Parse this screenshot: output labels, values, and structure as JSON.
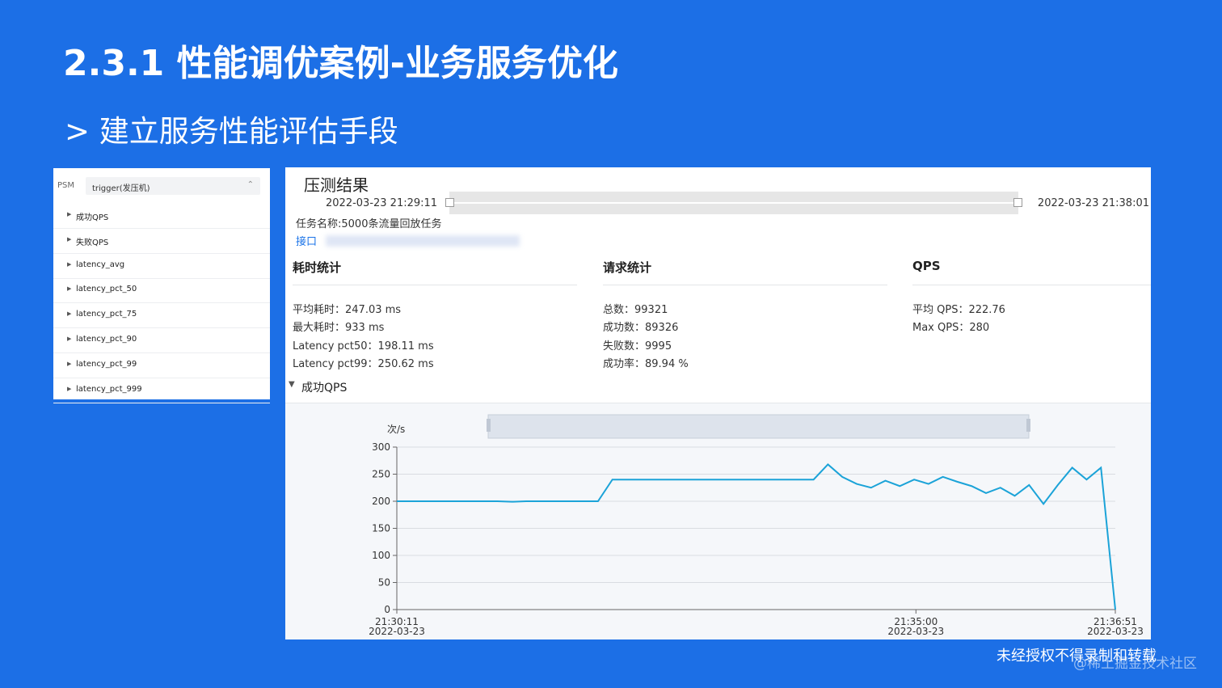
{
  "slide": {
    "title": "2.3.1 性能调优案例-业务服务优化",
    "subtitle": "> 建立服务性能评估手段",
    "footer": "未经授权不得录制和转载",
    "watermark": "@稀土掘金技术社区"
  },
  "sidebar": {
    "psm_label": "PSM",
    "psm_value": "trigger(发压机)",
    "items": [
      "成功QPS",
      "失败QPS",
      "latency_avg",
      "latency_pct_50",
      "latency_pct_75",
      "latency_pct_90",
      "latency_pct_99",
      "latency_pct_999"
    ]
  },
  "report": {
    "title": "压测结果",
    "start_time": "2022-03-23 21:29:11",
    "end_time": "2022-03-23 21:38:01",
    "task": "任务名称:5000条流量回放任务",
    "link": "接口",
    "sections": [
      {
        "title": "耗时统计",
        "lines": [
          "平均耗时：247.03 ms",
          "最大耗时：933 ms",
          "Latency pct50：198.11 ms",
          "Latency pct99：250.62 ms"
        ]
      },
      {
        "title": "请求统计",
        "lines": [
          "总数：99321",
          "成功数：89326",
          "失败数：9995",
          "成功率：89.94 %"
        ]
      },
      {
        "title": "QPS",
        "lines": [
          "平均 QPS：222.76",
          "Max QPS：280"
        ]
      }
    ],
    "chart_toggle": "成功QPS"
  },
  "chart_data": {
    "type": "line",
    "y_label": "次/s",
    "color": "#1ba3d8",
    "x": [
      "21:30:11",
      "21:30:19",
      "21:30:27",
      "21:30:35",
      "21:30:43",
      "21:30:51",
      "21:30:59",
      "21:31:07",
      "21:31:15",
      "21:31:23",
      "21:31:31",
      "21:31:39",
      "21:31:47",
      "21:31:55",
      "21:32:03",
      "21:32:11",
      "21:32:19",
      "21:32:27",
      "21:32:35",
      "21:32:43",
      "21:32:51",
      "21:32:59",
      "21:33:07",
      "21:33:15",
      "21:33:23",
      "21:33:31",
      "21:33:39",
      "21:33:47",
      "21:33:55",
      "21:34:03",
      "21:34:11",
      "21:34:19",
      "21:34:27",
      "21:34:35",
      "21:34:43",
      "21:34:51",
      "21:34:59",
      "21:35:07",
      "21:35:15",
      "21:35:23",
      "21:35:31",
      "21:35:39",
      "21:35:47",
      "21:35:55",
      "21:36:03",
      "21:36:11",
      "21:36:19",
      "21:36:27",
      "21:36:35",
      "21:36:43",
      "21:36:51"
    ],
    "values": [
      200,
      200,
      200,
      200,
      200,
      200,
      200,
      200,
      199,
      200,
      200,
      200,
      200,
      200,
      200,
      240,
      240,
      240,
      240,
      240,
      240,
      240,
      240,
      240,
      240,
      240,
      240,
      240,
      240,
      240,
      268,
      245,
      232,
      225,
      238,
      228,
      240,
      232,
      245,
      236,
      228,
      215,
      225,
      210,
      230,
      195,
      230,
      262,
      240,
      262,
      0
    ],
    "ylim": [
      0,
      300
    ],
    "yticks": [
      0,
      50,
      100,
      150,
      200,
      250,
      300
    ],
    "xticks": [
      "21:30:11",
      "21:35:00",
      "21:36:51"
    ],
    "xtick_dates": [
      "2022-03-23",
      "2022-03-23",
      "2022-03-23"
    ],
    "grid": true
  }
}
